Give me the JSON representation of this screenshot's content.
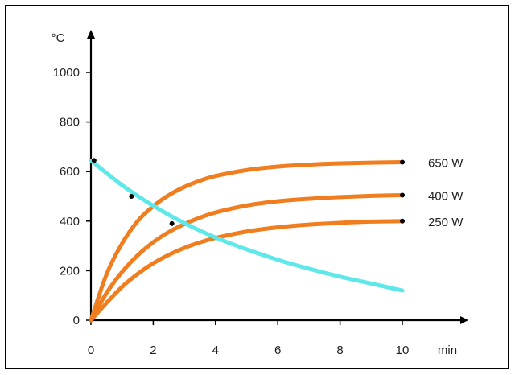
{
  "chart_data": {
    "type": "line",
    "title": "",
    "xlabel": "min",
    "ylabel": "°C",
    "xlim": [
      0,
      10
    ],
    "ylim": [
      0,
      1100
    ],
    "x_ticks": [
      0,
      2,
      4,
      6,
      8,
      10
    ],
    "y_ticks": [
      0,
      200,
      400,
      600,
      800,
      1000
    ],
    "grid": false,
    "legend": "inline labels at right end of curves",
    "colors": {
      "heating": "#f07d1e",
      "cooling": "#5ee8ea",
      "axis": "#000000",
      "frame": "#000000"
    },
    "x_tick_labels": [
      "0",
      "2",
      "4",
      "6",
      "8",
      "10"
    ],
    "y_tick_labels": [
      "0",
      "200",
      "400",
      "600",
      "800",
      "1000"
    ],
    "series": [
      {
        "name": "650 W",
        "color": "#f07d1e",
        "x": [
          0,
          0.5,
          1,
          1.5,
          2,
          2.5,
          3,
          3.5,
          4,
          5,
          6,
          7,
          8,
          9,
          10
        ],
        "y": [
          0,
          185,
          310,
          400,
          460,
          505,
          538,
          563,
          582,
          606,
          620,
          628,
          633,
          636,
          638
        ]
      },
      {
        "name": "400 W",
        "color": "#f07d1e",
        "x": [
          0,
          0.5,
          1,
          1.5,
          2,
          2.5,
          3,
          3.5,
          4,
          5,
          6,
          7,
          8,
          9,
          10
        ],
        "y": [
          0,
          110,
          195,
          262,
          315,
          356,
          388,
          414,
          435,
          463,
          480,
          490,
          497,
          502,
          505
        ]
      },
      {
        "name": "250 W",
        "color": "#f07d1e",
        "x": [
          0,
          0.5,
          1,
          1.5,
          2,
          2.5,
          3,
          3.5,
          4,
          5,
          6,
          7,
          8,
          9,
          10
        ],
        "y": [
          0,
          70,
          135,
          187,
          230,
          264,
          292,
          314,
          332,
          358,
          375,
          386,
          393,
          398,
          400
        ]
      },
      {
        "name": "",
        "color": "#5ee8ea",
        "x": [
          0,
          1,
          2,
          3,
          4,
          5,
          6,
          7,
          8,
          9,
          10
        ],
        "y": [
          645,
          545,
          462,
          392,
          334,
          286,
          244,
          208,
          176,
          148,
          120
        ]
      }
    ],
    "markers": [
      {
        "x": 0.1,
        "y": 645
      },
      {
        "x": 1.3,
        "y": 500
      },
      {
        "x": 2.6,
        "y": 390
      },
      {
        "x": 10,
        "y": 638
      },
      {
        "x": 10,
        "y": 505
      },
      {
        "x": 10,
        "y": 400
      }
    ]
  }
}
